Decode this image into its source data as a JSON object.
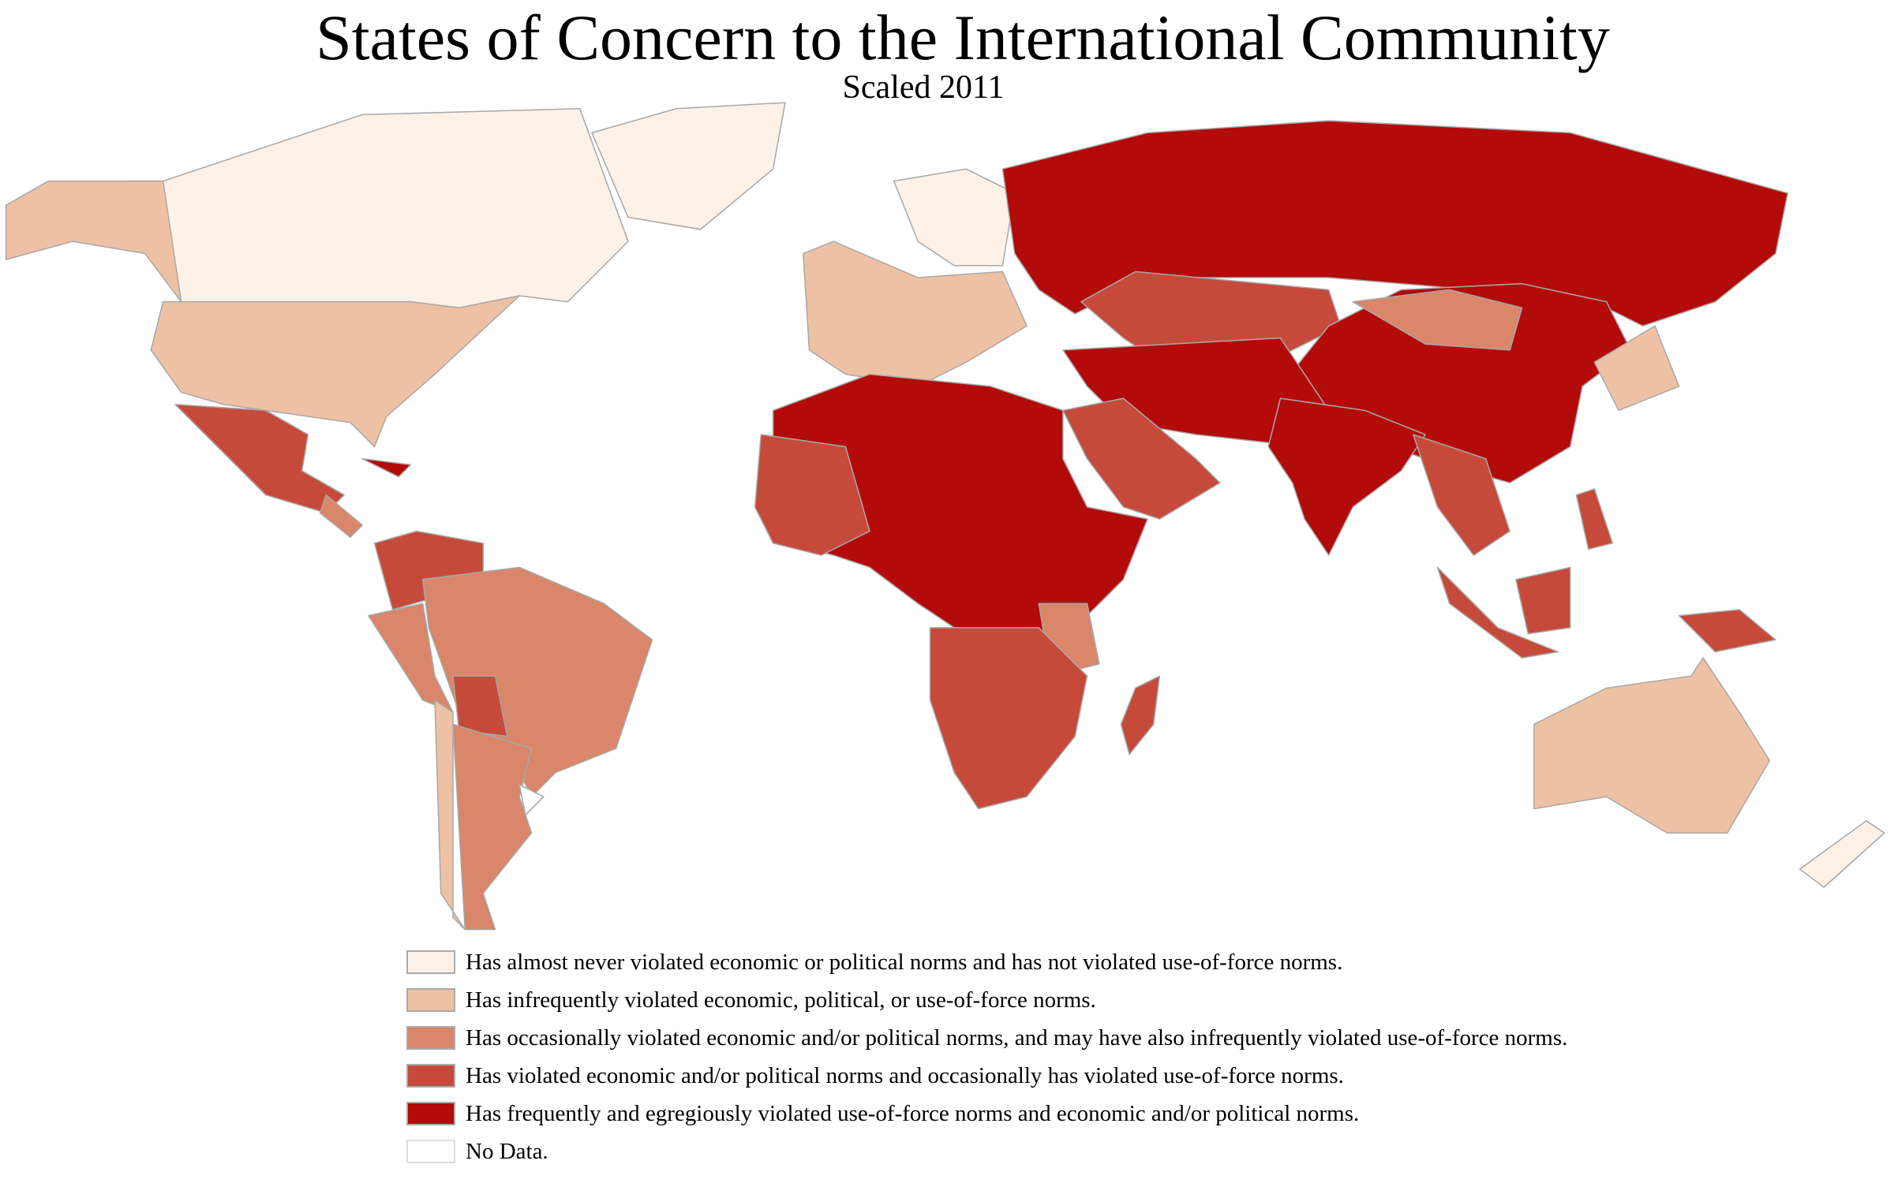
{
  "title": "States of Concern to the International Community",
  "subtitle": "Scaled 2011",
  "colors": {
    "level1": "#fef2e8",
    "level2": "#efc1a4",
    "level3": "#d9866a",
    "level4": "#c64a3a",
    "level5": "#b30a0a",
    "nodata": "#ffffff",
    "border": "#a8a8a8"
  },
  "legend": [
    {
      "label": "Has almost never violated economic or political norms and has not violated use-of-force norms.",
      "color": "#fef2e8"
    },
    {
      "label": "Has infrequently violated economic, political, or use-of-force norms.",
      "color": "#efc1a4"
    },
    {
      "label": "Has occasionally violated economic and/or political norms, and may have also infrequently violated use-of-force norms.",
      "color": "#d9866a"
    },
    {
      "label": "Has violated economic and/or political norms and occasionally has violated use-of-force norms.",
      "color": "#c64a3a"
    },
    {
      "label": "Has frequently and egregiously violated use-of-force norms and economic and/or political norms.",
      "color": "#b30a0a"
    },
    {
      "label": "No Data.",
      "color": "#ffffff"
    }
  ]
}
